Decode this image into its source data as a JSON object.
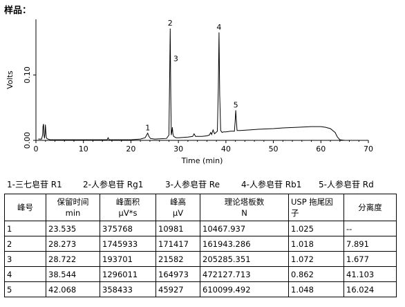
{
  "sample_label": "样品：",
  "chart_data": {
    "type": "line",
    "xlabel": "Time (min)",
    "ylabel": "Volts",
    "xlim": [
      0,
      70
    ],
    "ylim": [
      0,
      0.185
    ],
    "x_ticks": [
      0,
      10,
      20,
      30,
      40,
      50,
      60,
      70
    ],
    "y_ticks": [
      0.0,
      0.1
    ],
    "series": [
      {
        "x": [
          0.5,
          1.2,
          1.4,
          1.5,
          1.6,
          1.7,
          1.8,
          1.9,
          2.0,
          2.1,
          2.2,
          2.3,
          2.5,
          3.0,
          5,
          8,
          10,
          12,
          14,
          15,
          15.2,
          15.4,
          16,
          18,
          20,
          22,
          23.0,
          23.3,
          23.535,
          23.8,
          24.1,
          25,
          27.5,
          28.0,
          28.15,
          28.273,
          28.4,
          28.5,
          28.6,
          28.722,
          28.85,
          29.0,
          29.5,
          30,
          32,
          33,
          33.3,
          33.6,
          34,
          35,
          36,
          36.5,
          36.8,
          37.0,
          37.3,
          37.6,
          37.9,
          38.2,
          38.4,
          38.544,
          38.7,
          38.9,
          39.2,
          39.5,
          40,
          41,
          41.8,
          41.95,
          42.068,
          42.2,
          42.35,
          43,
          45,
          47,
          50,
          52,
          55,
          58,
          60,
          61,
          62,
          63,
          63.5,
          64,
          65,
          66,
          67,
          68,
          69,
          70
        ],
        "y": [
          0.002,
          0.002,
          0.008,
          0.022,
          0.025,
          0.008,
          0.003,
          0.01,
          0.024,
          0.012,
          0.004,
          0.003,
          0.002,
          0.001,
          0.001,
          0.001,
          0.001,
          0.001,
          0.001,
          0.001,
          0.004,
          0.001,
          0.001,
          0.001,
          0.001,
          0.002,
          0.004,
          0.008,
          0.011,
          0.006,
          0.003,
          0.002,
          0.003,
          0.008,
          0.09,
          0.171,
          0.07,
          0.008,
          0.012,
          0.02,
          0.01,
          0.006,
          0.004,
          0.004,
          0.005,
          0.006,
          0.01,
          0.006,
          0.006,
          0.006,
          0.007,
          0.008,
          0.012,
          0.009,
          0.016,
          0.01,
          0.012,
          0.014,
          0.08,
          0.165,
          0.07,
          0.015,
          0.012,
          0.013,
          0.013,
          0.014,
          0.014,
          0.03,
          0.046,
          0.03,
          0.015,
          0.015,
          0.016,
          0.017,
          0.018,
          0.019,
          0.02,
          0.021,
          0.021,
          0.02,
          0.018,
          0.012,
          0.005,
          0.001,
          0.0,
          0.0,
          0.0,
          0.0,
          0.0,
          0.0
        ]
      }
    ],
    "peak_labels": [
      {
        "label": "1",
        "x": 23.535,
        "y": 0.011
      },
      {
        "label": "2",
        "x": 28.273,
        "y": 0.171
      },
      {
        "label": "3",
        "x": 28.722,
        "y": 0.12
      },
      {
        "label": "4",
        "x": 38.544,
        "y": 0.165
      },
      {
        "label": "5",
        "x": 42.068,
        "y": 0.046
      }
    ]
  },
  "legend_items": [
    "1-三七皂苷 R1",
    "2-人参皂苷 Rg1",
    "3-人参皂苷 Re",
    "4-人参皂苷 Rb1",
    "5-人参皂苷 Rd"
  ],
  "table": {
    "headers": [
      [
        "峰号"
      ],
      [
        "保留时间",
        "min"
      ],
      [
        "峰面积",
        "μV*s"
      ],
      [
        "峰高",
        "μV"
      ],
      [
        "理论塔板数",
        "N"
      ],
      [
        "USP 拖尾因",
        "子"
      ],
      [
        "分离度"
      ]
    ],
    "rows": [
      [
        "1",
        "23.535",
        "375768",
        "10981",
        "10467.937",
        "1.025",
        "--"
      ],
      [
        "2",
        "28.273",
        "1745933",
        "171417",
        "161943.286",
        "1.018",
        "7.891"
      ],
      [
        "3",
        "28.722",
        "193701",
        "21582",
        "205285.351",
        "1.072",
        "1.677"
      ],
      [
        "4",
        "38.544",
        "1296011",
        "164973",
        "472127.713",
        "0.862",
        "41.103"
      ],
      [
        "5",
        "42.068",
        "358433",
        "45927",
        "610099.492",
        "1.048",
        "16.024"
      ]
    ]
  }
}
